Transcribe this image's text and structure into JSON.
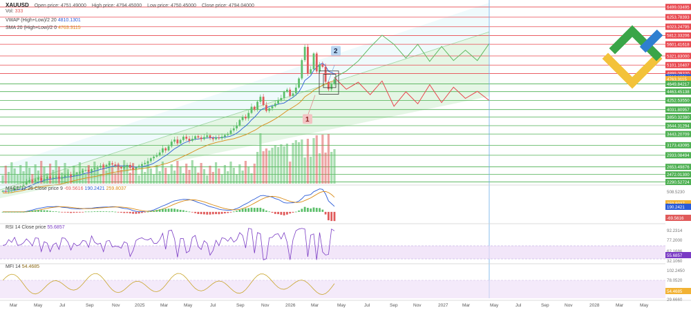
{
  "header": {
    "symbol": "XAUUSD",
    "open": "Open price: 4751.49000",
    "high": "High price: 4794.45000",
    "low": "Low price: 4750.45000",
    "close": "Close price: 4794.04000",
    "vol_label": "Vol:",
    "vol_value": "333"
  },
  "indicators": {
    "vwap_name": "VWAP (High+Low)/2 20",
    "vwap_value": "4810.1301",
    "sma_name": "SMA 20 (High+Low)/2 0",
    "sma_value": "4763.3115",
    "macd_name": "MACD 12 26 Close price 9",
    "macd_hist": "-69.5616",
    "macd_line": "190.2421",
    "macd_signal": "259.8037",
    "rsi_name": "RSI 14 Close price",
    "rsi_value": "55.6857",
    "mfi_name": "MFI 14",
    "mfi_value": "54.4685"
  },
  "annotations": {
    "label_1": "1",
    "label_2": "2"
  },
  "colors": {
    "up": "#5cbf6a",
    "down": "#e05a5a",
    "vwap": "#2a5bd7",
    "sma": "#d98a14",
    "channel": "#cfeecf",
    "ray": "#7fc7f0",
    "rsi": "#7a3bc4",
    "mfi": "#c8a52a",
    "hline_red": "#e8474e",
    "hline_green": "#4caf50"
  },
  "chart_data": [
    {
      "type": "candlestick",
      "title": "XAUUSD",
      "x_ticks": [
        "Mar",
        "May",
        "Jul",
        "Sep",
        "Nov",
        "2025",
        "Mar",
        "May",
        "Jul",
        "Sep",
        "Nov",
        "2026",
        "Mar",
        "May",
        "Jul",
        "Sep",
        "Nov",
        "2027",
        "Mar",
        "May",
        "Jul",
        "Sep",
        "Nov",
        "2028",
        "Mar",
        "May"
      ],
      "price_levels": [
        {
          "value": "6499.03495",
          "color": "red"
        },
        {
          "value": "6253.78393",
          "color": "red"
        },
        {
          "value": "6023.24795",
          "color": "red"
        },
        {
          "value": "5812.33206",
          "color": "red"
        },
        {
          "value": "5601.41618",
          "color": "red"
        },
        {
          "value": "5321.83000",
          "color": "red"
        },
        {
          "value": "5101.10407",
          "color": "red"
        },
        {
          "value": "4899.09320",
          "color": "red"
        },
        {
          "value": "4810.1301",
          "color": "blue"
        },
        {
          "value": "4763.3115",
          "color": "orange"
        },
        {
          "value": "4649.84217",
          "color": "green"
        },
        {
          "value": "4463.45138",
          "color": "green"
        },
        {
          "value": "4252.53550",
          "color": "green"
        },
        {
          "value": "4031.80957",
          "color": "green"
        },
        {
          "value": "3850.32380",
          "color": "green"
        },
        {
          "value": "3644.31294",
          "color": "green"
        },
        {
          "value": "3443.20709",
          "color": "green"
        },
        {
          "value": "3173.43095",
          "color": "green"
        },
        {
          "value": "2933.08494",
          "color": "green"
        },
        {
          "value": "2653.49876",
          "color": "green"
        },
        {
          "value": "2472.01300",
          "color": "green"
        },
        {
          "value": "2290.52724",
          "color": "green"
        }
      ],
      "ylim": [
        2250,
        6600
      ],
      "candles_close": [
        2070,
        2060,
        2085,
        2090,
        2150,
        2160,
        2185,
        2230,
        2300,
        2330,
        2310,
        2350,
        2390,
        2330,
        2370,
        2410,
        2380,
        2400,
        2420,
        2370,
        2410,
        2450,
        2470,
        2440,
        2480,
        2500,
        2520,
        2560,
        2580,
        2540,
        2600,
        2620,
        2640,
        2680,
        2650,
        2700,
        2740,
        2710,
        2680,
        2650,
        2620,
        2660,
        2700,
        2630,
        2600,
        2640,
        2680,
        2720,
        2750,
        2790,
        2860,
        2900,
        2940,
        3000,
        3100,
        3050,
        3150,
        3260,
        3310,
        3220,
        3300,
        3380,
        3330,
        3280,
        3330,
        3390,
        3360,
        3320,
        3370,
        3410,
        3350,
        3320,
        3360,
        3340,
        3380,
        3420,
        3450,
        3530,
        3580,
        3650,
        3780,
        3860,
        3820,
        3950,
        4100,
        4030,
        4220,
        4340,
        4140,
        4000,
        4060,
        4110,
        4180,
        4260,
        4310,
        4460,
        4510,
        4360,
        4420,
        4560,
        4780,
        5220,
        5540,
        4900,
        5000,
        5380,
        4950,
        5120,
        5060,
        4700,
        4520,
        4640,
        4760
      ],
      "forecast_green": [
        4800,
        4960,
        5200,
        5530,
        5820,
        5600,
        5270,
        5600,
        5190,
        5550,
        5210,
        5460,
        5210,
        5620
      ],
      "forecast_red": [
        4800,
        4520,
        4690,
        4390,
        4720,
        4110,
        4460,
        4170,
        4630,
        4200,
        4570,
        4300,
        4470,
        4250
      ]
    },
    {
      "type": "bar",
      "title": "MACD 12 26 Close price 9",
      "ticks": [
        "508.5230",
        "259.8037",
        "190.2421",
        "-69.5616"
      ],
      "last_values": {
        "histogram": -69.5616,
        "macd": 190.2421,
        "signal": 259.8037
      }
    },
    {
      "type": "line",
      "title": "RSI 14 Close price",
      "ticks": [
        "92.2314",
        "77.2000",
        "62.1686",
        "55.6857",
        "32.1060"
      ],
      "levels": [
        70,
        30
      ],
      "last_value": 55.6857
    },
    {
      "type": "line",
      "title": "MFI 14",
      "ticks": [
        "102.2450",
        "78.0520",
        "54.4685",
        "29.6660"
      ],
      "levels": [
        80,
        20
      ],
      "last_value": 54.4685
    }
  ]
}
